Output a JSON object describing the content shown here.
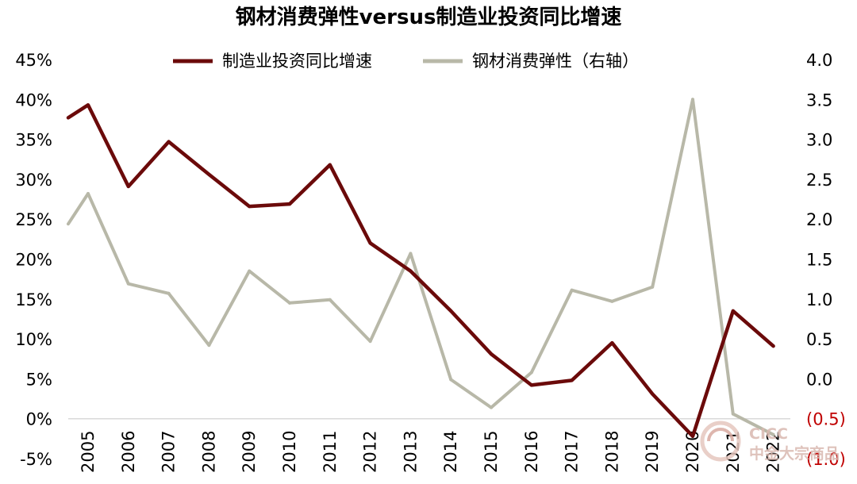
{
  "chart_data": {
    "type": "line",
    "title": "钢材消费弹性versus制造业投资同比增速",
    "categories": [
      "2005",
      "2006",
      "2007",
      "2008",
      "2009",
      "2010",
      "2011",
      "2012",
      "2013",
      "2014",
      "2015",
      "2016",
      "2017",
      "2018",
      "2019",
      "2020",
      "2021",
      "2022"
    ],
    "series": [
      {
        "name": "制造业投资同比增速",
        "axis": "left",
        "color": "#6b0a0a",
        "start_value": 37.7,
        "values": [
          39.3,
          29.1,
          34.7,
          30.6,
          26.6,
          26.9,
          31.8,
          22.0,
          18.5,
          13.5,
          8.1,
          4.2,
          4.8,
          9.5,
          3.1,
          -2.2,
          13.5,
          9.1
        ]
      },
      {
        "name": "钢材消费弹性（右轴）",
        "axis": "right",
        "color": "#b8b8a8",
        "start_value": 1.94,
        "values": [
          2.32,
          1.19,
          1.07,
          0.42,
          1.35,
          0.95,
          0.99,
          0.47,
          1.57,
          -0.01,
          -0.36,
          0.08,
          1.11,
          0.97,
          1.15,
          3.5,
          -0.44,
          -0.7
        ]
      }
    ],
    "left_axis": {
      "ylim": [
        -5,
        45
      ],
      "ticks": [
        45,
        40,
        35,
        30,
        25,
        20,
        15,
        10,
        5,
        0,
        -5
      ],
      "tick_labels": [
        "45%",
        "40%",
        "35%",
        "30%",
        "25%",
        "20%",
        "15%",
        "10%",
        "5%",
        "0%",
        "-5%"
      ]
    },
    "right_axis": {
      "ylim": [
        -1.0,
        4.0
      ],
      "ticks": [
        4.0,
        3.5,
        3.0,
        2.5,
        2.0,
        1.5,
        1.0,
        0.5,
        0.0,
        -0.5,
        -1.0
      ],
      "tick_labels": [
        "4.0",
        "3.5",
        "3.0",
        "2.5",
        "2.0",
        "1.5",
        "1.0",
        "0.5",
        "0.0",
        "(0.5)",
        "(1.0)"
      ],
      "negative_color": "#c00000"
    },
    "legend": {
      "placement": "top-center"
    },
    "grid": false
  },
  "watermark": {
    "line1": "CICC",
    "line2": "中金大宗商品"
  }
}
